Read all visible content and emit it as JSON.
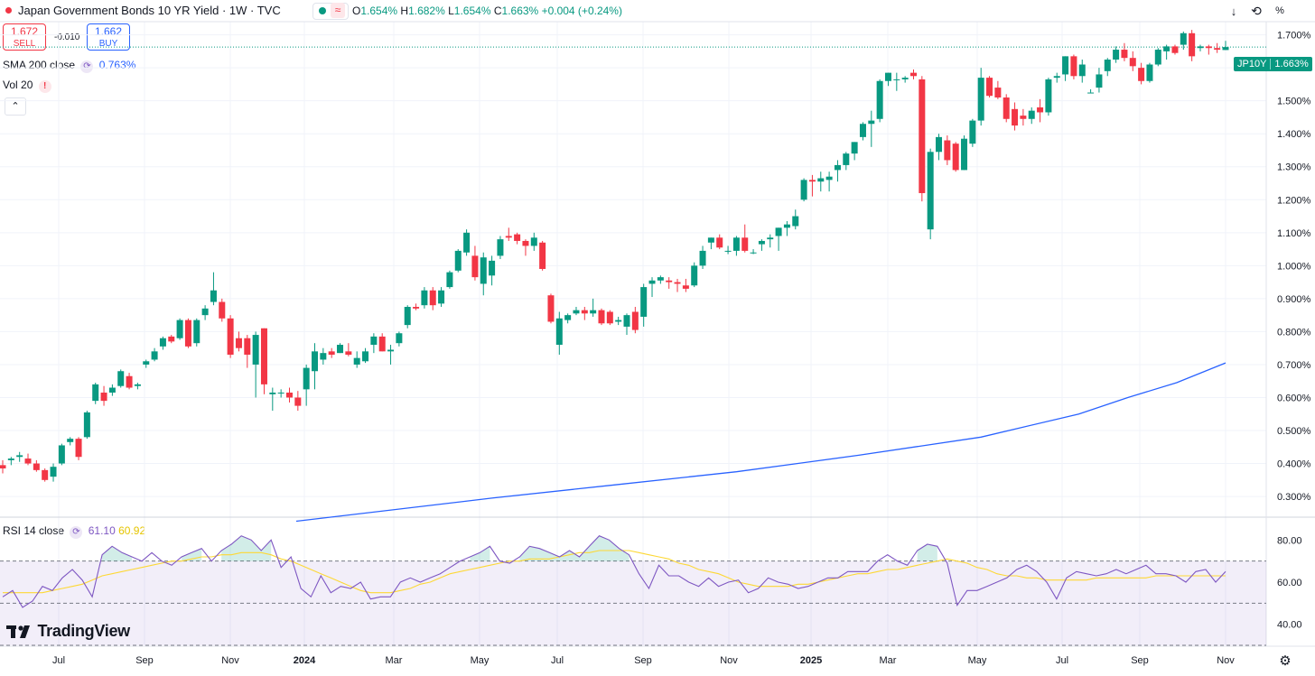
{
  "header": {
    "symbol_title": "Japan Government Bonds 10 YR Yield · 1W · TVC",
    "open_label": "O",
    "open": "1.654%",
    "high_label": "H",
    "high": "1.682%",
    "low_label": "L",
    "low": "1.654%",
    "close_label": "C",
    "close": "1.663%",
    "change": "+0.004 (+0.24%)",
    "percent_button": "%"
  },
  "trade": {
    "sell_price": "1.672",
    "sell_label": "SELL",
    "spread": "-0.010",
    "buy_price": "1.662",
    "buy_label": "BUY"
  },
  "indicators": {
    "sma_label": "SMA 200 close",
    "sma_value": "0.763%",
    "vol_label": "Vol 20",
    "rsi_label": "RSI 14 close",
    "rsi_value": "61.10",
    "rsi_ma_value": "60.92"
  },
  "price_tag": {
    "symbol": "JP10Y",
    "value": "1.663%"
  },
  "logo_text": "TradingView",
  "colors": {
    "up": "#089981",
    "down": "#f23645",
    "sma": "#2962ff",
    "rsi": "#7e57c2",
    "rsi_ma": "#fdd835"
  },
  "chart_data": [
    {
      "type": "candlestick",
      "title": "Japan Government Bonds 10 YR Yield · 1W · TVC",
      "x_axis": {
        "type": "time",
        "tick_labels": [
          "Jul",
          "Sep",
          "Nov",
          "2024",
          "Mar",
          "May",
          "Jul",
          "Sep",
          "Nov",
          "2025",
          "Mar",
          "May",
          "Jul",
          "Sep",
          "Nov"
        ]
      },
      "y_axis": {
        "unit": "%",
        "range": [
          0.24,
          1.74
        ],
        "tick_labels": [
          "0.300%",
          "0.400%",
          "0.500%",
          "0.600%",
          "0.700%",
          "0.800%",
          "0.900%",
          "1.000%",
          "1.100%",
          "1.200%",
          "1.300%",
          "1.400%",
          "1.500%",
          "1.600%",
          "1.700%"
        ]
      },
      "grid": true,
      "last_close": 1.663,
      "candles_ohlc": [
        [
          0.395,
          0.41,
          0.37,
          0.385
        ],
        [
          0.41,
          0.42,
          0.395,
          0.415
        ],
        [
          0.42,
          0.435,
          0.405,
          0.425
        ],
        [
          0.415,
          0.43,
          0.395,
          0.4
        ],
        [
          0.4,
          0.41,
          0.375,
          0.38
        ],
        [
          0.38,
          0.385,
          0.345,
          0.35
        ],
        [
          0.36,
          0.4,
          0.345,
          0.39
        ],
        [
          0.4,
          0.46,
          0.395,
          0.455
        ],
        [
          0.465,
          0.48,
          0.455,
          0.475
        ],
        [
          0.475,
          0.48,
          0.41,
          0.42
        ],
        [
          0.48,
          0.56,
          0.475,
          0.555
        ],
        [
          0.59,
          0.645,
          0.58,
          0.64
        ],
        [
          0.615,
          0.635,
          0.575,
          0.59
        ],
        [
          0.615,
          0.64,
          0.605,
          0.63
        ],
        [
          0.635,
          0.685,
          0.63,
          0.68
        ],
        [
          0.665,
          0.675,
          0.625,
          0.63
        ],
        [
          0.635,
          0.645,
          0.625,
          0.64
        ],
        [
          0.7,
          0.715,
          0.69,
          0.71
        ],
        [
          0.715,
          0.75,
          0.71,
          0.74
        ],
        [
          0.755,
          0.785,
          0.745,
          0.78
        ],
        [
          0.785,
          0.79,
          0.765,
          0.77
        ],
        [
          0.78,
          0.84,
          0.775,
          0.835
        ],
        [
          0.835,
          0.84,
          0.75,
          0.755
        ],
        [
          0.765,
          0.84,
          0.755,
          0.835
        ],
        [
          0.85,
          0.88,
          0.835,
          0.87
        ],
        [
          0.89,
          0.98,
          0.88,
          0.925
        ],
        [
          0.89,
          0.9,
          0.83,
          0.84
        ],
        [
          0.84,
          0.85,
          0.72,
          0.73
        ],
        [
          0.78,
          0.8,
          0.74,
          0.75
        ],
        [
          0.78,
          0.79,
          0.69,
          0.73
        ],
        [
          0.7,
          0.8,
          0.6,
          0.79
        ],
        [
          0.81,
          0.81,
          0.61,
          0.64
        ],
        [
          0.61,
          0.63,
          0.56,
          0.615
        ],
        [
          0.615,
          0.625,
          0.6,
          0.615
        ],
        [
          0.615,
          0.63,
          0.585,
          0.6
        ],
        [
          0.6,
          0.62,
          0.56,
          0.575
        ],
        [
          0.625,
          0.7,
          0.575,
          0.69
        ],
        [
          0.68,
          0.765,
          0.625,
          0.74
        ],
        [
          0.715,
          0.75,
          0.7,
          0.735
        ],
        [
          0.74,
          0.75,
          0.72,
          0.73
        ],
        [
          0.735,
          0.765,
          0.735,
          0.76
        ],
        [
          0.74,
          0.765,
          0.725,
          0.73
        ],
        [
          0.7,
          0.74,
          0.69,
          0.72
        ],
        [
          0.71,
          0.75,
          0.705,
          0.74
        ],
        [
          0.76,
          0.795,
          0.735,
          0.785
        ],
        [
          0.785,
          0.795,
          0.74,
          0.74
        ],
        [
          0.74,
          0.76,
          0.7,
          0.745
        ],
        [
          0.765,
          0.8,
          0.755,
          0.795
        ],
        [
          0.82,
          0.88,
          0.81,
          0.875
        ],
        [
          0.875,
          0.885,
          0.865,
          0.87
        ],
        [
          0.88,
          0.935,
          0.87,
          0.925
        ],
        [
          0.925,
          0.935,
          0.865,
          0.88
        ],
        [
          0.885,
          0.935,
          0.875,
          0.925
        ],
        [
          0.935,
          0.985,
          0.93,
          0.98
        ],
        [
          0.985,
          1.05,
          0.98,
          1.045
        ],
        [
          1.04,
          1.11,
          1.03,
          1.1
        ],
        [
          1.03,
          1.06,
          0.955,
          0.965
        ],
        [
          0.945,
          1.04,
          0.91,
          1.025
        ],
        [
          0.97,
          1.03,
          0.94,
          1.015
        ],
        [
          1.03,
          1.09,
          1.02,
          1.08
        ],
        [
          1.09,
          1.115,
          1.075,
          1.085
        ],
        [
          1.095,
          1.1,
          1.065,
          1.075
        ],
        [
          1.075,
          1.08,
          1.03,
          1.06
        ],
        [
          1.06,
          1.1,
          1.045,
          1.085
        ],
        [
          1.07,
          1.075,
          0.985,
          0.99
        ],
        [
          0.91,
          0.915,
          0.825,
          0.83
        ],
        [
          0.76,
          0.86,
          0.73,
          0.84
        ],
        [
          0.835,
          0.855,
          0.825,
          0.85
        ],
        [
          0.855,
          0.875,
          0.85,
          0.865
        ],
        [
          0.865,
          0.875,
          0.835,
          0.855
        ],
        [
          0.855,
          0.9,
          0.845,
          0.865
        ],
        [
          0.865,
          0.87,
          0.82,
          0.825
        ],
        [
          0.86,
          0.865,
          0.82,
          0.825
        ],
        [
          0.83,
          0.845,
          0.82,
          0.835
        ],
        [
          0.815,
          0.855,
          0.79,
          0.85
        ],
        [
          0.86,
          0.875,
          0.795,
          0.805
        ],
        [
          0.845,
          0.945,
          0.815,
          0.935
        ],
        [
          0.945,
          0.965,
          0.905,
          0.955
        ],
        [
          0.955,
          0.97,
          0.945,
          0.965
        ],
        [
          0.955,
          0.965,
          0.93,
          0.95
        ],
        [
          0.95,
          0.96,
          0.92,
          0.945
        ],
        [
          0.94,
          0.96,
          0.92,
          0.93
        ],
        [
          0.94,
          1.01,
          0.935,
          1.0
        ],
        [
          1.0,
          1.06,
          0.99,
          1.045
        ],
        [
          1.07,
          1.085,
          1.05,
          1.085
        ],
        [
          1.085,
          1.095,
          1.05,
          1.055
        ],
        [
          1.045,
          1.06,
          1.035,
          1.045
        ],
        [
          1.045,
          1.09,
          1.03,
          1.085
        ],
        [
          1.085,
          1.125,
          1.04,
          1.045
        ],
        [
          1.04,
          1.05,
          1.035,
          1.04
        ],
        [
          1.065,
          1.08,
          1.045,
          1.075
        ],
        [
          1.08,
          1.095,
          1.055,
          1.085
        ],
        [
          1.09,
          1.115,
          1.045,
          1.115
        ],
        [
          1.115,
          1.135,
          1.09,
          1.125
        ],
        [
          1.12,
          1.17,
          1.11,
          1.15
        ],
        [
          1.2,
          1.265,
          1.195,
          1.26
        ],
        [
          1.26,
          1.275,
          1.21,
          1.255
        ],
        [
          1.255,
          1.285,
          1.225,
          1.265
        ],
        [
          1.26,
          1.285,
          1.225,
          1.27
        ],
        [
          1.29,
          1.32,
          1.255,
          1.305
        ],
        [
          1.305,
          1.345,
          1.29,
          1.34
        ],
        [
          1.34,
          1.375,
          1.32,
          1.375
        ],
        [
          1.39,
          1.435,
          1.38,
          1.43
        ],
        [
          1.43,
          1.47,
          1.36,
          1.44
        ],
        [
          1.445,
          1.565,
          1.435,
          1.56
        ],
        [
          1.56,
          1.585,
          1.545,
          1.585
        ],
        [
          1.565,
          1.585,
          1.53,
          1.565
        ],
        [
          1.565,
          1.575,
          1.555,
          1.57
        ],
        [
          1.585,
          1.595,
          1.565,
          1.575
        ],
        [
          1.565,
          1.575,
          1.195,
          1.22
        ],
        [
          1.11,
          1.355,
          1.08,
          1.345
        ],
        [
          1.345,
          1.4,
          1.32,
          1.39
        ],
        [
          1.38,
          1.395,
          1.305,
          1.32
        ],
        [
          1.37,
          1.375,
          1.285,
          1.29
        ],
        [
          1.29,
          1.395,
          1.29,
          1.385
        ],
        [
          1.37,
          1.445,
          1.36,
          1.44
        ],
        [
          1.44,
          1.6,
          1.425,
          1.57
        ],
        [
          1.57,
          1.575,
          1.51,
          1.515
        ],
        [
          1.54,
          1.56,
          1.505,
          1.51
        ],
        [
          1.51,
          1.52,
          1.435,
          1.445
        ],
        [
          1.475,
          1.495,
          1.41,
          1.425
        ],
        [
          1.455,
          1.475,
          1.425,
          1.445
        ],
        [
          1.445,
          1.48,
          1.43,
          1.47
        ],
        [
          1.48,
          1.505,
          1.435,
          1.465
        ],
        [
          1.465,
          1.57,
          1.455,
          1.565
        ],
        [
          1.57,
          1.585,
          1.555,
          1.575
        ],
        [
          1.58,
          1.635,
          1.56,
          1.635
        ],
        [
          1.635,
          1.64,
          1.565,
          1.575
        ],
        [
          1.575,
          1.625,
          1.555,
          1.61
        ],
        [
          1.525,
          1.535,
          1.525,
          1.525
        ],
        [
          1.54,
          1.6,
          1.525,
          1.58
        ],
        [
          1.59,
          1.63,
          1.575,
          1.625
        ],
        [
          1.625,
          1.665,
          1.615,
          1.655
        ],
        [
          1.655,
          1.675,
          1.62,
          1.63
        ],
        [
          1.63,
          1.65,
          1.59,
          1.605
        ],
        [
          1.6,
          1.615,
          1.55,
          1.56
        ],
        [
          1.56,
          1.615,
          1.555,
          1.61
        ],
        [
          1.61,
          1.66,
          1.605,
          1.655
        ],
        [
          1.65,
          1.67,
          1.625,
          1.665
        ],
        [
          1.665,
          1.67,
          1.64,
          1.645
        ],
        [
          1.67,
          1.71,
          1.655,
          1.705
        ],
        [
          1.705,
          1.715,
          1.62,
          1.635
        ],
        [
          1.66,
          1.67,
          1.65,
          1.665
        ],
        [
          1.665,
          1.67,
          1.64,
          1.66
        ],
        [
          1.66,
          1.675,
          1.645,
          1.655
        ],
        [
          1.654,
          1.682,
          1.654,
          1.663
        ]
      ],
      "sma200": [
        [
          0.24,
          0.225
        ],
        [
          0.4,
          0.295
        ],
        [
          0.5,
          0.335
        ],
        [
          0.6,
          0.375
        ],
        [
          0.7,
          0.425
        ],
        [
          0.8,
          0.48
        ],
        [
          0.88,
          0.55
        ],
        [
          0.92,
          0.6
        ],
        [
          0.96,
          0.645
        ],
        [
          1.0,
          0.705
        ]
      ]
    },
    {
      "type": "line",
      "title": "RSI 14 close",
      "y_axis": {
        "range": [
          30,
          90
        ],
        "tick_labels": [
          "40.00",
          "60.00",
          "80.00"
        ]
      },
      "bands": {
        "upper": 70,
        "middle": 50,
        "lower": 30
      },
      "rsi": [
        53,
        56,
        48,
        51,
        58,
        56,
        62,
        66,
        61,
        53,
        73,
        77,
        74,
        72,
        70,
        74,
        70,
        68,
        72,
        74,
        76,
        70,
        75,
        78,
        82,
        80,
        75,
        80,
        67,
        72,
        57,
        53,
        63,
        55,
        58,
        57,
        60,
        52,
        53,
        53,
        60,
        62,
        60,
        62,
        64,
        67,
        70,
        72,
        74,
        77,
        70,
        69,
        72,
        77,
        76,
        74,
        72,
        75,
        72,
        77,
        82,
        80,
        76,
        73,
        64,
        57,
        68,
        63,
        63,
        60,
        58,
        62,
        58,
        60,
        61,
        55,
        57,
        62,
        60,
        59,
        57,
        58,
        60,
        62,
        62,
        65,
        65,
        65,
        70,
        73,
        70,
        68,
        75,
        78,
        77,
        69,
        49,
        56,
        56,
        58,
        60,
        62,
        66,
        68,
        65,
        60,
        52,
        62,
        65,
        64,
        63,
        64,
        66,
        64,
        66,
        68,
        64,
        64,
        63,
        60,
        65,
        66,
        60,
        65
      ],
      "rsi_ma": [
        55,
        55,
        55,
        55,
        55,
        56,
        57,
        58,
        59,
        61,
        63,
        64,
        65,
        66,
        67,
        68,
        69,
        70,
        70,
        71,
        72,
        72,
        73,
        73,
        74,
        74,
        74,
        73,
        71,
        70,
        68,
        66,
        64,
        62,
        60,
        58,
        56,
        55,
        55,
        55,
        56,
        57,
        59,
        60,
        62,
        64,
        65,
        66,
        67,
        68,
        69,
        70,
        70,
        71,
        71,
        71,
        72,
        73,
        74,
        74,
        75,
        75,
        75,
        75,
        74,
        73,
        72,
        71,
        69,
        68,
        66,
        65,
        64,
        62,
        60,
        59,
        58,
        58,
        58,
        58,
        59,
        59,
        60,
        61,
        62,
        63,
        64,
        64,
        65,
        66,
        66,
        67,
        68,
        69,
        70,
        71,
        70,
        69,
        67,
        66,
        64,
        63,
        63,
        62,
        62,
        61,
        61,
        61,
        61,
        61,
        62,
        62,
        62,
        62,
        62,
        62,
        63,
        63,
        63,
        63,
        63,
        63,
        63,
        63
      ]
    }
  ]
}
